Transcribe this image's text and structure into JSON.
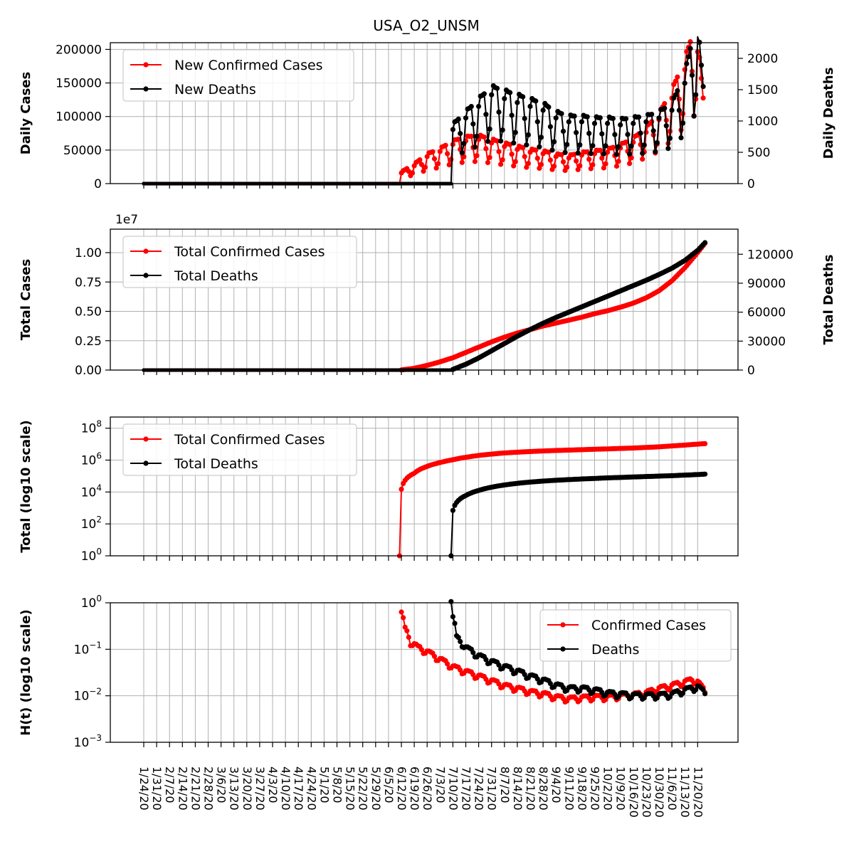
{
  "figure_title": "USA_O2_UNSM",
  "colors": {
    "cases": "#ff0000",
    "deaths": "#000000",
    "grid": "#b0b0b0"
  },
  "x_dates": [
    "1/24/20",
    "1/31/20",
    "2/7/20",
    "2/14/20",
    "2/21/20",
    "2/28/20",
    "3/6/20",
    "3/13/20",
    "3/20/20",
    "3/27/20",
    "4/3/20",
    "4/10/20",
    "4/17/20",
    "4/24/20",
    "5/1/20",
    "5/8/20",
    "5/15/20",
    "5/22/20",
    "5/29/20",
    "6/5/20",
    "6/12/20",
    "6/19/20",
    "6/26/20",
    "7/3/20",
    "7/10/20",
    "7/17/20",
    "7/24/20",
    "7/31/20",
    "8/7/20",
    "8/14/20",
    "8/21/20",
    "8/28/20",
    "9/4/20",
    "9/11/20",
    "9/18/20",
    "9/25/20",
    "10/2/20",
    "10/9/20",
    "10/16/20",
    "10/23/20",
    "10/30/20",
    "11/6/20",
    "11/13/20",
    "11/20/20"
  ],
  "chart_data": [
    {
      "type": "line",
      "panel": "daily",
      "title": "USA_O2_UNSM",
      "ylabel": "Daily Cases",
      "ylabel_right": "Daily Deaths",
      "ylim": [
        0,
        210000
      ],
      "ylim_right": [
        0,
        2250
      ],
      "yticks": [
        "0",
        "50000",
        "100000",
        "150000",
        "200000"
      ],
      "yticks_right": [
        "0",
        "500",
        "1000",
        "1500",
        "2000"
      ],
      "grid": true,
      "legend_position": "upper left",
      "series": [
        {
          "name": "New Confirmed Cases",
          "axis": "left",
          "color": "#ff0000",
          "keypoints": [
            [
              "6/12/20",
              15000
            ],
            [
              "6/19/20",
              25000
            ],
            [
              "6/26/20",
              38000
            ],
            [
              "7/3/20",
              45000
            ],
            [
              "7/10/20",
              55000
            ],
            [
              "7/17/20",
              60000
            ],
            [
              "7/24/20",
              62000
            ],
            [
              "7/31/20",
              57000
            ],
            [
              "8/7/20",
              52000
            ],
            [
              "8/14/20",
              48000
            ],
            [
              "8/21/20",
              44000
            ],
            [
              "8/28/20",
              42000
            ],
            [
              "9/4/20",
              38000
            ],
            [
              "9/11/20",
              36000
            ],
            [
              "9/18/20",
              40000
            ],
            [
              "9/25/20",
              42000
            ],
            [
              "10/2/20",
              44000
            ],
            [
              "10/9/20",
              50000
            ],
            [
              "10/16/20",
              58000
            ],
            [
              "10/23/20",
              72000
            ],
            [
              "10/30/20",
              90000
            ],
            [
              "11/6/20",
              120000
            ],
            [
              "11/13/20",
              160000
            ],
            [
              "11/17/20",
              190000
            ],
            [
              "11/20/20",
              185000
            ],
            [
              "11/23/20",
              110000
            ]
          ]
        },
        {
          "name": "New Deaths",
          "axis": "right",
          "color": "#000000",
          "keypoints": [
            [
              "7/10/20",
              700
            ],
            [
              "7/17/20",
              850
            ],
            [
              "7/24/20",
              1000
            ],
            [
              "7/31/20",
              1150
            ],
            [
              "8/7/20",
              1100
            ],
            [
              "8/14/20",
              1050
            ],
            [
              "8/21/20",
              1000
            ],
            [
              "8/28/20",
              950
            ],
            [
              "9/4/20",
              850
            ],
            [
              "9/11/20",
              800
            ],
            [
              "9/18/20",
              800
            ],
            [
              "9/25/20",
              780
            ],
            [
              "10/2/20",
              780
            ],
            [
              "10/9/20",
              760
            ],
            [
              "10/16/20",
              780
            ],
            [
              "10/23/20",
              800
            ],
            [
              "10/30/20",
              850
            ],
            [
              "11/6/20",
              950
            ],
            [
              "11/13/20",
              1300
            ],
            [
              "11/17/20",
              1700
            ],
            [
              "11/20/20",
              1900
            ],
            [
              "11/23/20",
              1150
            ]
          ]
        }
      ]
    },
    {
      "type": "line",
      "panel": "total",
      "ylabel": "Total Cases",
      "ylabel_right": "Total Deaths",
      "offset_text": "1e7",
      "ylim": [
        0,
        12000000
      ],
      "ylim_right": [
        0,
        146000
      ],
      "yticks": [
        "0.00",
        "0.25",
        "0.50",
        "0.75",
        "1.00"
      ],
      "yticks_right": [
        "0",
        "30000",
        "60000",
        "90000",
        "120000"
      ],
      "grid": true,
      "legend_position": "upper left",
      "series": [
        {
          "name": "Total Confirmed Cases",
          "axis": "left",
          "color": "#ff0000",
          "keypoints": [
            [
              "6/12/20",
              15000
            ],
            [
              "6/19/20",
              150000
            ],
            [
              "6/26/20",
              400000
            ],
            [
              "7/3/20",
              700000
            ],
            [
              "7/10/20",
              1050000
            ],
            [
              "7/17/20",
              1500000
            ],
            [
              "7/24/20",
              1950000
            ],
            [
              "7/31/20",
              2400000
            ],
            [
              "8/7/20",
              2800000
            ],
            [
              "8/14/20",
              3150000
            ],
            [
              "8/21/20",
              3450000
            ],
            [
              "8/28/20",
              3750000
            ],
            [
              "9/4/20",
              4000000
            ],
            [
              "9/11/20",
              4250000
            ],
            [
              "9/18/20",
              4500000
            ],
            [
              "9/25/20",
              4800000
            ],
            [
              "10/2/20",
              5050000
            ],
            [
              "10/9/20",
              5350000
            ],
            [
              "10/16/20",
              5700000
            ],
            [
              "10/23/20",
              6150000
            ],
            [
              "10/30/20",
              6750000
            ],
            [
              "11/6/20",
              7600000
            ],
            [
              "11/13/20",
              8700000
            ],
            [
              "11/20/20",
              10000000
            ],
            [
              "11/24/20",
              10800000
            ]
          ]
        },
        {
          "name": "Total Deaths",
          "axis": "right",
          "color": "#000000",
          "keypoints": [
            [
              "7/10/20",
              700
            ],
            [
              "7/17/20",
              6000
            ],
            [
              "7/24/20",
              12500
            ],
            [
              "7/31/20",
              20000
            ],
            [
              "8/7/20",
              27500
            ],
            [
              "8/14/20",
              35000
            ],
            [
              "8/21/20",
              42000
            ],
            [
              "8/28/20",
              48500
            ],
            [
              "9/4/20",
              54500
            ],
            [
              "9/11/20",
              60000
            ],
            [
              "9/18/20",
              65500
            ],
            [
              "9/25/20",
              71000
            ],
            [
              "10/2/20",
              76500
            ],
            [
              "10/9/20",
              82000
            ],
            [
              "10/16/20",
              87500
            ],
            [
              "10/23/20",
              93000
            ],
            [
              "10/30/20",
              99000
            ],
            [
              "11/6/20",
              105500
            ],
            [
              "11/13/20",
              113500
            ],
            [
              "11/20/20",
              124000
            ],
            [
              "11/24/20",
              132000
            ]
          ]
        }
      ]
    },
    {
      "type": "line",
      "panel": "log_total",
      "ylabel": "Total (log10 scale)",
      "yscale": "log",
      "ylim_exp": [
        0,
        8.7
      ],
      "yticks_exp": [
        0,
        2,
        4,
        6,
        8
      ],
      "grid": true,
      "legend_position": "upper left",
      "series": [
        {
          "name": "Total Confirmed Cases",
          "color": "#ff0000",
          "keypoints": [
            [
              "6/11/20",
              1
            ],
            [
              "6/12/20",
              15000
            ],
            [
              "6/19/20",
              150000
            ],
            [
              "6/26/20",
              400000
            ],
            [
              "7/3/20",
              700000
            ],
            [
              "7/10/20",
              1050000
            ],
            [
              "7/24/20",
              1950000
            ],
            [
              "8/7/20",
              2800000
            ],
            [
              "8/21/20",
              3450000
            ],
            [
              "9/4/20",
              4000000
            ],
            [
              "9/18/20",
              4500000
            ],
            [
              "10/2/20",
              5050000
            ],
            [
              "10/16/20",
              5700000
            ],
            [
              "10/30/20",
              6750000
            ],
            [
              "11/13/20",
              8700000
            ],
            [
              "11/24/20",
              10800000
            ]
          ]
        },
        {
          "name": "Total Deaths",
          "color": "#000000",
          "keypoints": [
            [
              "7/9/20",
              1
            ],
            [
              "7/10/20",
              700
            ],
            [
              "7/17/20",
              6000
            ],
            [
              "7/24/20",
              12500
            ],
            [
              "7/31/20",
              20000
            ],
            [
              "8/14/20",
              35000
            ],
            [
              "8/28/20",
              48500
            ],
            [
              "9/11/20",
              60000
            ],
            [
              "9/25/20",
              71000
            ],
            [
              "10/9/20",
              82000
            ],
            [
              "10/23/20",
              93000
            ],
            [
              "11/6/20",
              105500
            ],
            [
              "11/20/20",
              124000
            ],
            [
              "11/24/20",
              132000
            ]
          ]
        }
      ]
    },
    {
      "type": "line",
      "panel": "hazard",
      "ylabel": "H(t) (log10 scale)",
      "yscale": "log",
      "ylim_exp": [
        -3,
        0
      ],
      "yticks_exp": [
        -3,
        -2,
        -1,
        0
      ],
      "grid": true,
      "legend_position": "upper right",
      "series": [
        {
          "name": "Confirmed Cases",
          "color": "#ff0000",
          "keypoints": [
            [
              "6/12/20",
              0.55
            ],
            [
              "6/14/20",
              0.25
            ],
            [
              "6/17/20",
              0.13
            ],
            [
              "6/21/20",
              0.1
            ],
            [
              "6/26/20",
              0.08
            ],
            [
              "7/3/20",
              0.055
            ],
            [
              "7/10/20",
              0.038
            ],
            [
              "7/17/20",
              0.03
            ],
            [
              "7/24/20",
              0.024
            ],
            [
              "7/31/20",
              0.019
            ],
            [
              "8/7/20",
              0.015
            ],
            [
              "8/14/20",
              0.013
            ],
            [
              "8/21/20",
              0.011
            ],
            [
              "8/28/20",
              0.01
            ],
            [
              "9/4/20",
              0.0085
            ],
            [
              "9/11/20",
              0.0078
            ],
            [
              "9/18/20",
              0.0082
            ],
            [
              "9/25/20",
              0.0085
            ],
            [
              "10/2/20",
              0.0085
            ],
            [
              "10/9/20",
              0.009
            ],
            [
              "10/16/20",
              0.0095
            ],
            [
              "10/23/20",
              0.0105
            ],
            [
              "10/30/20",
              0.013
            ],
            [
              "11/6/20",
              0.015
            ],
            [
              "11/13/20",
              0.018
            ],
            [
              "11/17/20",
              0.02
            ],
            [
              "11/20/20",
              0.018
            ],
            [
              "11/24/20",
              0.011
            ]
          ]
        },
        {
          "name": "Deaths",
          "color": "#000000",
          "keypoints": [
            [
              "7/9/20",
              1.0
            ],
            [
              "7/10/20",
              0.4
            ],
            [
              "7/12/20",
              0.15
            ],
            [
              "7/17/20",
              0.09
            ],
            [
              "7/24/20",
              0.06
            ],
            [
              "7/31/20",
              0.045
            ],
            [
              "8/7/20",
              0.035
            ],
            [
              "8/14/20",
              0.028
            ],
            [
              "8/21/20",
              0.022
            ],
            [
              "8/28/20",
              0.018
            ],
            [
              "9/4/20",
              0.014
            ],
            [
              "9/11/20",
              0.012
            ],
            [
              "9/18/20",
              0.012
            ],
            [
              "9/25/20",
              0.011
            ],
            [
              "10/2/20",
              0.0095
            ],
            [
              "10/9/20",
              0.009
            ],
            [
              "10/16/20",
              0.0085
            ],
            [
              "10/23/20",
              0.0085
            ],
            [
              "10/30/20",
              0.0085
            ],
            [
              "11/6/20",
              0.009
            ],
            [
              "11/13/20",
              0.011
            ],
            [
              "11/20/20",
              0.013
            ],
            [
              "11/24/20",
              0.0095
            ]
          ]
        }
      ]
    }
  ]
}
